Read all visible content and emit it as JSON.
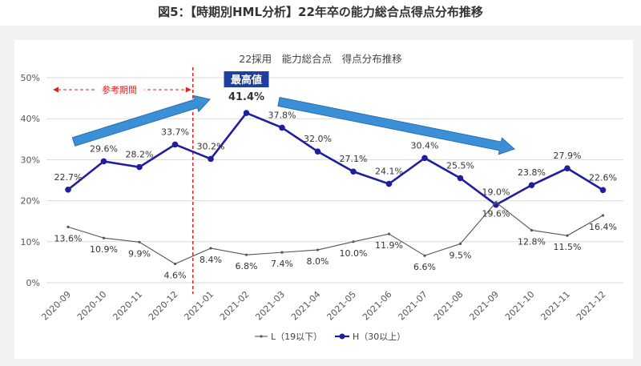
{
  "page": {
    "figure_title": "図5：【時期別HML分析】22年卒の能力総合点得点分布推移"
  },
  "chart_data": {
    "type": "line",
    "title": "22採用　能力総合点　得点分布推移",
    "categories": [
      "2020-09",
      "2020-10",
      "2020-11",
      "2020-12",
      "2021-01",
      "2021-02",
      "2021-03",
      "2021-04",
      "2021-05",
      "2021-06",
      "2021-07",
      "2021-08",
      "2021-09",
      "2021-10",
      "2021-11",
      "2021-12"
    ],
    "series": [
      {
        "name": "H（30以上）",
        "values": [
          22.7,
          29.6,
          28.2,
          33.7,
          30.2,
          41.4,
          37.8,
          32.0,
          27.1,
          24.1,
          30.4,
          25.5,
          19.0,
          23.8,
          27.9,
          22.6
        ],
        "labels": [
          "22.7%",
          "29.6%",
          "28.2%",
          "33.7%",
          "30.2%",
          "41.4%",
          "37.8%",
          "32.0%",
          "27.1%",
          "24.1%",
          "30.4%",
          "25.5%",
          "19.0%",
          "23.8%",
          "27.9%",
          "22.6%"
        ],
        "color": "#1f1f9e"
      },
      {
        "name": "L（19以下）",
        "values": [
          13.6,
          10.9,
          9.9,
          4.6,
          8.4,
          6.8,
          7.4,
          8.0,
          10.0,
          11.9,
          6.6,
          9.5,
          19.6,
          12.8,
          11.5,
          16.4
        ],
        "labels": [
          "13.6%",
          "10.9%",
          "9.9%",
          "4.6%",
          "8.4%",
          "6.8%",
          "7.4%",
          "8.0%",
          "10.0%",
          "11.9%",
          "6.6%",
          "9.5%",
          "19.6%",
          "12.8%",
          "11.5%",
          "16.4%"
        ],
        "color": "#555555"
      }
    ],
    "y_ticks": [
      "0%",
      "10%",
      "20%",
      "30%",
      "40%",
      "50%"
    ],
    "ylim": [
      0,
      50
    ],
    "grid": true,
    "legend": "bottom",
    "annotations": {
      "max_box": "最高値",
      "ref_period": "参考期間",
      "divider_between": [
        "2020-12",
        "2021-01"
      ]
    },
    "colors": {
      "grid": "#d9d9d9",
      "divider": "#e02020",
      "max_box": "#1f3fa0",
      "arrow": "#3a8fd6"
    }
  }
}
